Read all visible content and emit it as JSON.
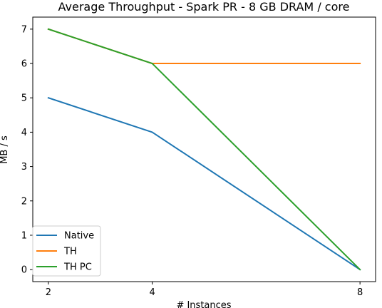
{
  "chart_data": {
    "type": "line",
    "title": "Average Throughput - Spark PR - 8 GB DRAM / core",
    "xlabel": "# Instances",
    "ylabel": "MB / s",
    "x": [
      2,
      4,
      8
    ],
    "xticks": [
      2,
      4,
      8
    ],
    "yticks": [
      0,
      1,
      2,
      3,
      4,
      5,
      6,
      7
    ],
    "xlim": [
      1.7,
      8.3
    ],
    "ylim": [
      -0.35,
      7.35
    ],
    "grid": false,
    "legend_position": "lower-left",
    "series": [
      {
        "name": "Native",
        "color": "#1f77b4",
        "values": [
          5,
          4,
          0
        ]
      },
      {
        "name": "TH",
        "color": "#ff7f0e",
        "values": [
          7,
          6,
          6
        ]
      },
      {
        "name": "TH PC",
        "color": "#2ca02c",
        "values": [
          7,
          6,
          0
        ]
      }
    ]
  }
}
